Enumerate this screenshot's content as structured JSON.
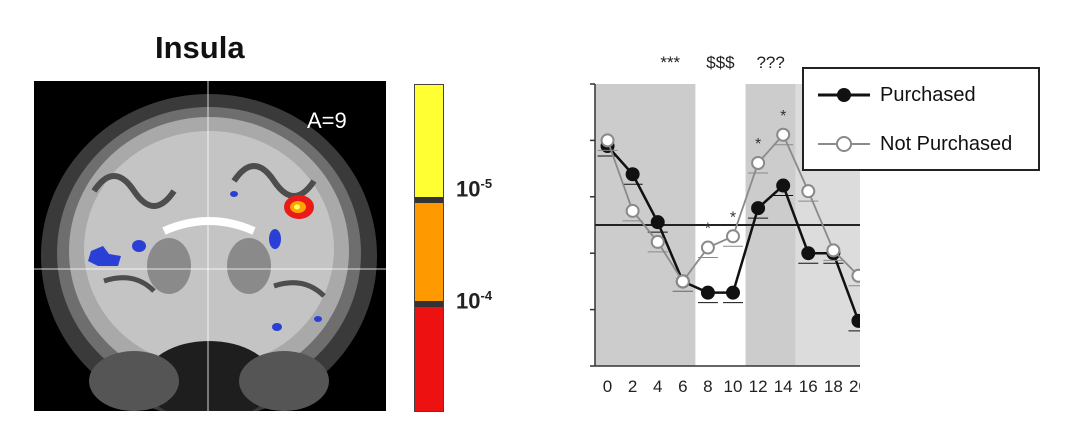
{
  "left_panel": {
    "title": "Insula",
    "slice_label": "A=9",
    "colorbar": {
      "colors": [
        "#ffff33",
        "#ff9900",
        "#ee1111"
      ],
      "threshold_labels": [
        {
          "base": "10",
          "exp": "-5"
        },
        {
          "base": "10",
          "exp": "-4"
        }
      ]
    }
  },
  "chart_data": {
    "type": "line",
    "title": "",
    "xlabel": "",
    "ylabel": "",
    "x": [
      0,
      2,
      4,
      6,
      8,
      10,
      12,
      14,
      16,
      18,
      20
    ],
    "x_tick_labels": [
      "0",
      "2",
      "4",
      "6",
      "8",
      "10",
      "12",
      "14",
      "16",
      "18",
      "20"
    ],
    "ylim": [
      -2.5,
      2.5
    ],
    "y_tick_values": [
      -2,
      -1,
      0,
      1,
      2,
      3
    ],
    "reference_line_y": 0,
    "series": [
      {
        "name": "Purchased",
        "color": "#111111",
        "marker": "filled-circle",
        "values": [
          1.4,
          0.9,
          0.05,
          -1.0,
          -1.2,
          -1.2,
          0.3,
          0.7,
          -0.5,
          -0.5,
          -1.7
        ]
      },
      {
        "name": "Not Purchased",
        "color": "#8a8a8a",
        "marker": "open-circle",
        "values": [
          1.5,
          0.25,
          -0.3,
          -1.0,
          -0.4,
          -0.2,
          1.1,
          1.6,
          0.6,
          -0.45,
          -0.9
        ]
      }
    ],
    "shaded_regions": [
      {
        "x_start": -1,
        "x_end": 7,
        "color": "#cccccc"
      },
      {
        "x_start": 11,
        "x_end": 15,
        "color": "#cccccc"
      },
      {
        "x_start": 15,
        "x_end": 21,
        "color": "#dcdcdc"
      }
    ],
    "significance_labels": [
      {
        "text": "***",
        "x": 5
      },
      {
        "text": "$$$",
        "x": 9
      },
      {
        "text": "???",
        "x": 13
      }
    ],
    "point_annotations": [
      {
        "text": "*",
        "x": 8
      },
      {
        "text": "*",
        "x": 10
      },
      {
        "text": "*",
        "x": 12
      },
      {
        "text": "*",
        "x": 14
      }
    ],
    "legend_position": "top-right"
  }
}
